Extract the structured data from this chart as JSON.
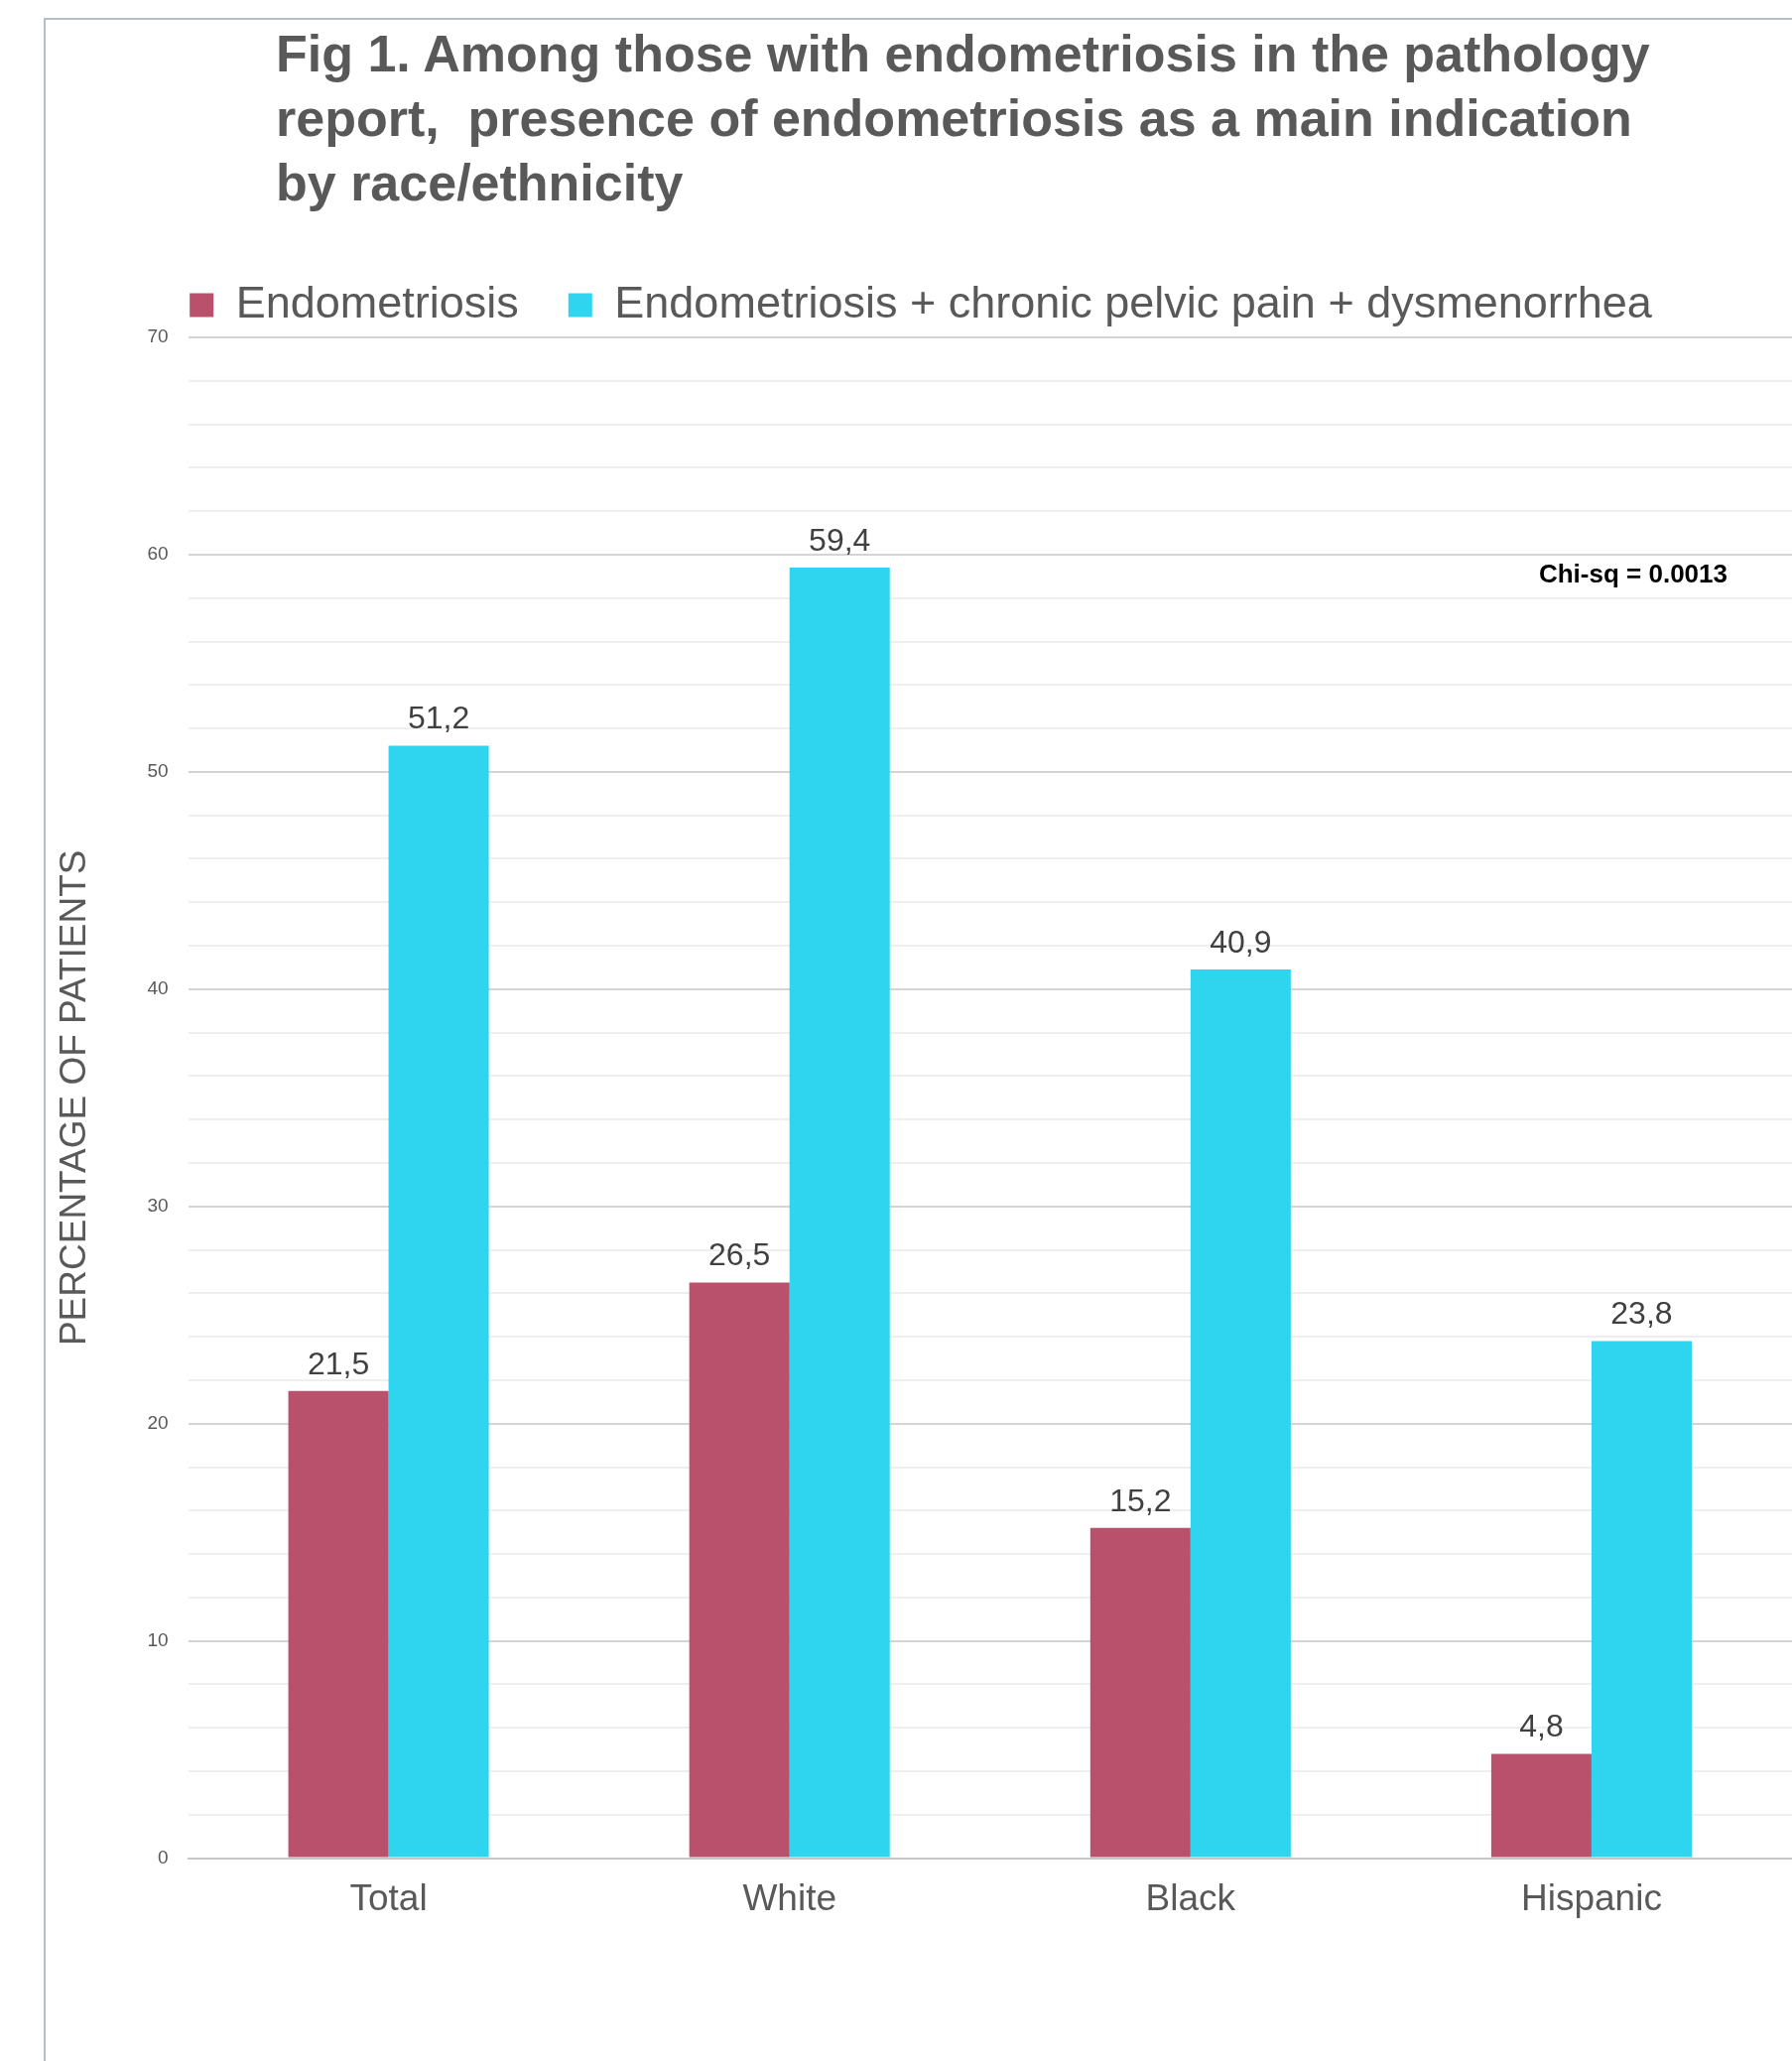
{
  "chart_data": {
    "type": "bar",
    "title": "Fig 1. Among those with endometriosis in the pathology report,  presence of endometriosis as a main indication by race/ethnicity",
    "ylabel": "PERCENTAGE OF PATIENTS",
    "categories": [
      "Total",
      "White",
      "Black",
      "Hispanic"
    ],
    "series": [
      {
        "name": "Endometriosis",
        "color": "#b9516d",
        "values": [
          21.5,
          26.5,
          15.2,
          4.8
        ],
        "value_labels": [
          "21,5",
          "26,5",
          "15,2",
          "4,8"
        ]
      },
      {
        "name": "Endometriosis + chronic pelvic pain + dysmenorrhea",
        "color": "#2fd4ef",
        "values": [
          51.2,
          59.4,
          40.9,
          23.8
        ],
        "value_labels": [
          "51,2",
          "59,4",
          "40,9",
          "23,8"
        ]
      }
    ],
    "ylim": [
      0,
      70
    ],
    "yticks": [
      0,
      {
        "value": 2,
        "label": null
      },
      {
        "value": 4,
        "label": null
      },
      {
        "value": 6,
        "label": null
      },
      {
        "value": 8,
        "label": null
      },
      10,
      {
        "value": 12,
        "label": null
      },
      {
        "value": 14,
        "label": null
      },
      {
        "value": 16,
        "label": null
      },
      {
        "value": 18,
        "label": null
      },
      20,
      {
        "value": 22,
        "label": null
      },
      {
        "value": 24,
        "label": null
      },
      {
        "value": 26,
        "label": null
      },
      {
        "value": 28,
        "label": null
      },
      30,
      {
        "value": 32,
        "label": null
      },
      {
        "value": 34,
        "label": null
      },
      {
        "value": 36,
        "label": null
      },
      {
        "value": 38,
        "label": null
      },
      40,
      {
        "value": 42,
        "label": null
      },
      {
        "value": 44,
        "label": null
      },
      {
        "value": 46,
        "label": null
      },
      {
        "value": 48,
        "label": null
      },
      50,
      {
        "value": 52,
        "label": null
      },
      {
        "value": 54,
        "label": null
      },
      {
        "value": 56,
        "label": null
      },
      {
        "value": 58,
        "label": null
      },
      60,
      {
        "value": 62,
        "label": null
      },
      {
        "value": 64,
        "label": null
      },
      {
        "value": 66,
        "label": null
      },
      {
        "value": 68,
        "label": null
      },
      70
    ],
    "grid": "y",
    "legend": "top",
    "annotations": [
      "Chi-sq = 0.0013"
    ]
  }
}
